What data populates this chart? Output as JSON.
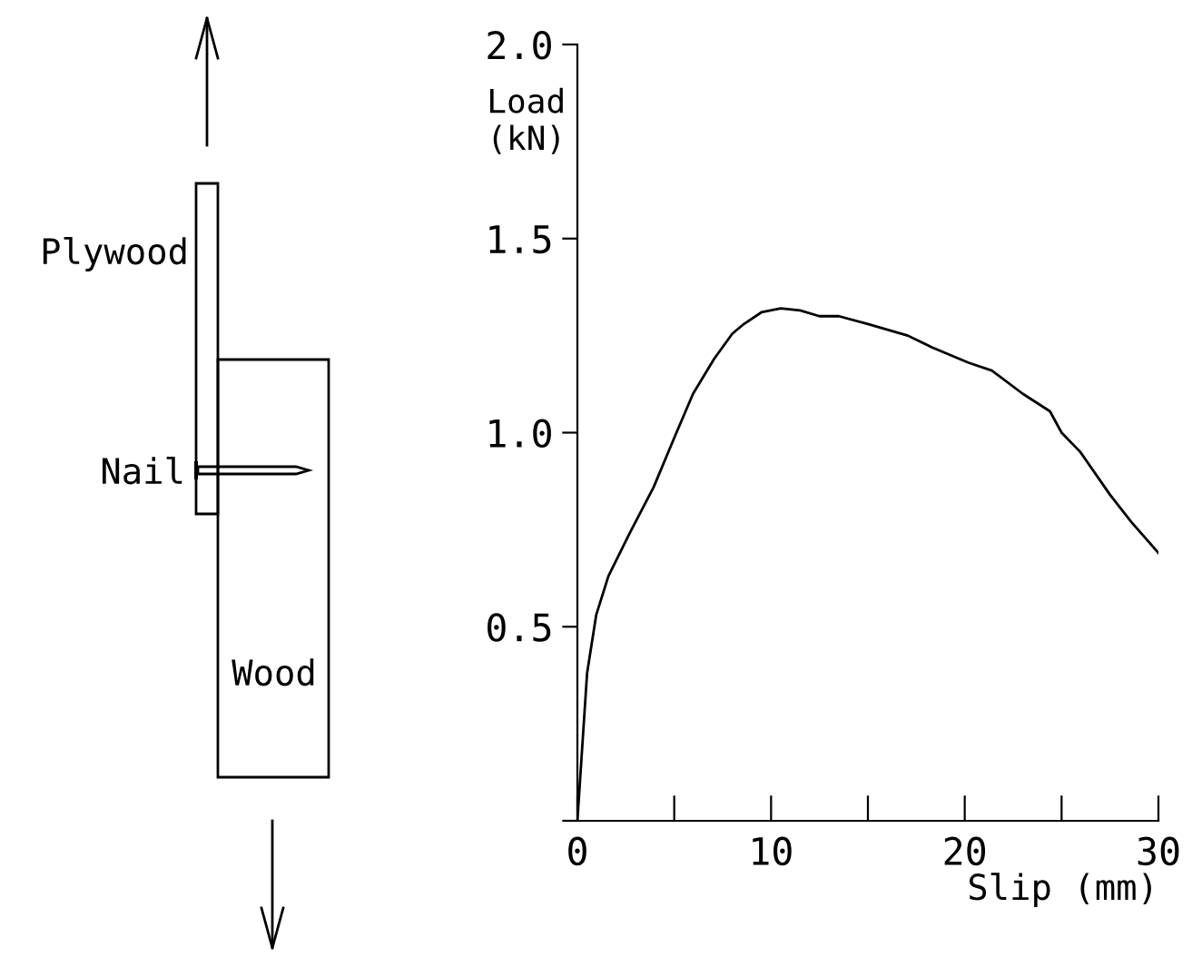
{
  "chart_data": {
    "type": "line",
    "xlabel": "Slip (mm)",
    "ylabel": "Load\n(kN)",
    "annotations": [
      "Plywood",
      "Nail",
      "Wood"
    ],
    "x": [
      0,
      0.5,
      0.97,
      1.6,
      2.69,
      3.94,
      5.03,
      5.97,
      7.06,
      8.0,
      8.6,
      9.5,
      10.5,
      11.5,
      12.5,
      13.5,
      15,
      17.06,
      18.3,
      20.2,
      21.4,
      23.0,
      24.4,
      25.0,
      25.97,
      27.5,
      28.6,
      30
    ],
    "series": [
      {
        "color": "#000000",
        "values": [
          0,
          0.38,
          0.53,
          0.63,
          0.74,
          0.86,
          0.99,
          1.1,
          1.19,
          1.255,
          1.28,
          1.31,
          1.32,
          1.315,
          1.3,
          1.3,
          1.28,
          1.25,
          1.22,
          1.18,
          1.16,
          1.1,
          1.055,
          1.0,
          0.95,
          0.84,
          0.77,
          0.69
        ]
      }
    ],
    "xlim": [
      0,
      30
    ],
    "ylim": [
      0,
      2.0
    ],
    "xticks": [
      0,
      {
        "value": 5,
        "label": null
      },
      10,
      {
        "value": 15,
        "label": null
      },
      20,
      {
        "value": 25,
        "label": null
      },
      30
    ],
    "yticks": [
      {
        "value": 0,
        "label": null
      },
      0.5,
      {
        "value": 1,
        "label": "1.0"
      },
      1.5,
      {
        "value": 2,
        "label": "2.0"
      }
    ],
    "grid": false,
    "legend": false,
    "marker": "none",
    "line_style": "solid"
  }
}
